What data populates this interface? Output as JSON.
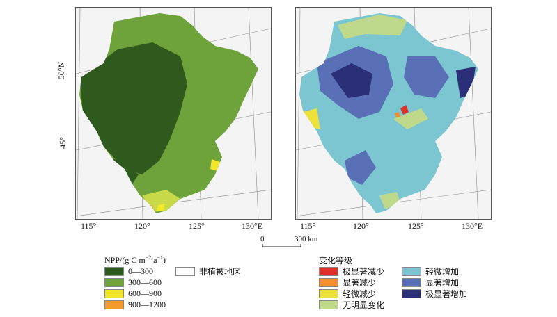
{
  "panels": {
    "left": {
      "x_ticks": [
        "115°",
        "120°",
        "125°",
        "130°E"
      ],
      "y_ticks": [
        "50°N",
        "45°"
      ]
    },
    "right": {
      "x_ticks": [
        "115°",
        "120°",
        "125°",
        "130°E"
      ]
    }
  },
  "scalebar": {
    "start": "0",
    "end": "300 km"
  },
  "legend_npp": {
    "title_prefix": "NPP/(g C m",
    "title_sup1": "−2",
    "title_mid": " a",
    "title_sup2": "−1",
    "title_suffix": ")",
    "items": [
      {
        "label": "0—300",
        "color": "#2e5a1e"
      },
      {
        "label": "300—600",
        "color": "#6ea23a"
      },
      {
        "label": "600—900",
        "color": "#f2e52a"
      },
      {
        "label": "900—1200",
        "color": "#f29a2e"
      }
    ],
    "nonveg": {
      "label": "非植被地区",
      "color": "#ffffff"
    }
  },
  "legend_change": {
    "title": "变化等级",
    "items": [
      {
        "label": "极显著减少",
        "color": "#e0302a"
      },
      {
        "label": "显著减少",
        "color": "#f0902e"
      },
      {
        "label": "轻微减少",
        "color": "#eee23a"
      },
      {
        "label": "无明显变化",
        "color": "#bfd98a"
      },
      {
        "label": "轻微增加",
        "color": "#7cc6d2"
      },
      {
        "label": "显著增加",
        "color": "#5a70b6"
      },
      {
        "label": "极显著增加",
        "color": "#2a2f78"
      }
    ]
  },
  "colors": {
    "frame": "#555555",
    "graticule": "#8a8a8a"
  }
}
